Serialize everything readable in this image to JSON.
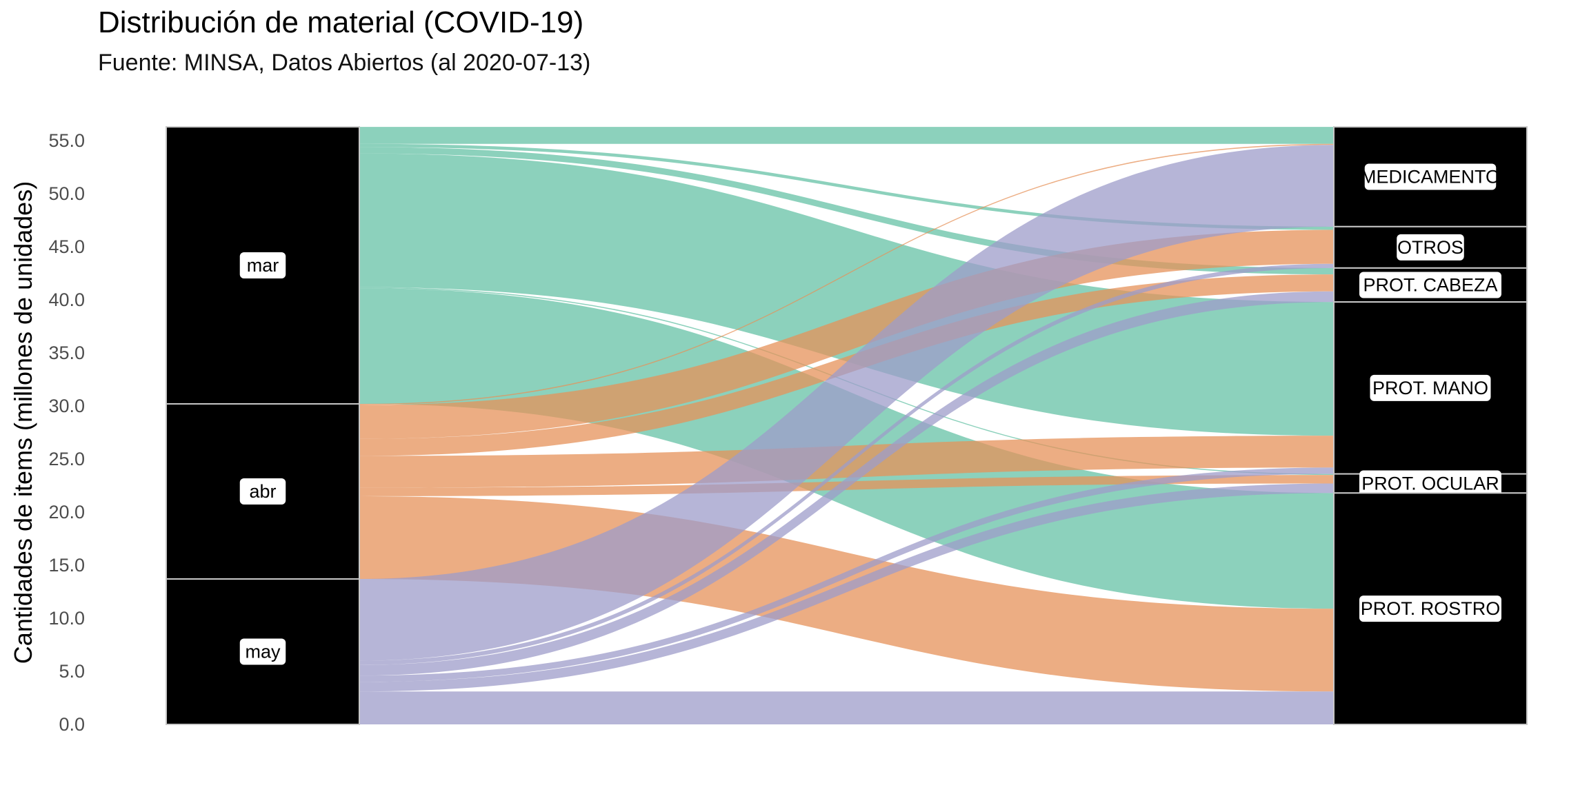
{
  "chart_data": {
    "type": "alluvial",
    "title": "Distribución de material (COVID-19)",
    "subtitle": "Fuente: MINSA, Datos Abiertos (al 2020-07-13)",
    "ylabel": "Cantidades de items (millones de unidades)",
    "xlabel": "",
    "ylim": [
      0,
      56.5
    ],
    "yticks": [
      0,
      5,
      10,
      15,
      20,
      25,
      30,
      35,
      40,
      45,
      50,
      55
    ],
    "ytick_labels": [
      "0.0",
      "5.0",
      "10.0",
      "15.0",
      "20.0",
      "25.0",
      "30.0",
      "35.0",
      "40.0",
      "45.0",
      "50.0",
      "55.0"
    ],
    "grid": false,
    "legend": "none",
    "colors": {
      "mar": "#66c2a5",
      "abr": "#e6925a",
      "may": "#9d9cc9"
    },
    "months": [
      {
        "key": "mar",
        "label": "mar"
      },
      {
        "key": "abr",
        "label": "abr"
      },
      {
        "key": "may",
        "label": "may"
      }
    ],
    "categories": [
      {
        "key": "MEDICAMENTO",
        "label": "MEDICAMENTO"
      },
      {
        "key": "OTROS",
        "label": "OTROS"
      },
      {
        "key": "PROT. CABEZA",
        "label": "PROT. CABEZA"
      },
      {
        "key": "PROT. MANO",
        "label": "PROT. MANO"
      },
      {
        "key": "PROT. OCULAR",
        "label": "PROT. OCULAR"
      },
      {
        "key": "PROT. ROSTRO",
        "label": "PROT. ROSTRO"
      }
    ],
    "flows": [
      {
        "month": "mar",
        "category": "MEDICAMENTO",
        "value": 1.6
      },
      {
        "month": "mar",
        "category": "OTROS",
        "value": 0.3
      },
      {
        "month": "mar",
        "category": "PROT. CABEZA",
        "value": 0.6
      },
      {
        "month": "mar",
        "category": "PROT. MANO",
        "value": 12.6
      },
      {
        "month": "mar",
        "category": "PROT. OCULAR",
        "value": 0.1
      },
      {
        "month": "mar",
        "category": "PROT. ROSTRO",
        "value": 10.9
      },
      {
        "month": "abr",
        "category": "MEDICAMENTO",
        "value": 0.1
      },
      {
        "month": "abr",
        "category": "OTROS",
        "value": 3.2
      },
      {
        "month": "abr",
        "category": "PROT. CABEZA",
        "value": 1.6
      },
      {
        "month": "abr",
        "category": "PROT. MANO",
        "value": 3.0
      },
      {
        "month": "abr",
        "category": "PROT. OCULAR",
        "value": 0.8
      },
      {
        "month": "abr",
        "category": "PROT. ROSTRO",
        "value": 7.8
      },
      {
        "month": "may",
        "category": "MEDICAMENTO",
        "value": 7.7
      },
      {
        "month": "may",
        "category": "OTROS",
        "value": 0.4
      },
      {
        "month": "may",
        "category": "PROT. CABEZA",
        "value": 1.0
      },
      {
        "month": "may",
        "category": "PROT. MANO",
        "value": 0.6
      },
      {
        "month": "may",
        "category": "PROT. OCULAR",
        "value": 0.9
      },
      {
        "month": "may",
        "category": "PROT. ROSTRO",
        "value": 3.1
      }
    ]
  }
}
